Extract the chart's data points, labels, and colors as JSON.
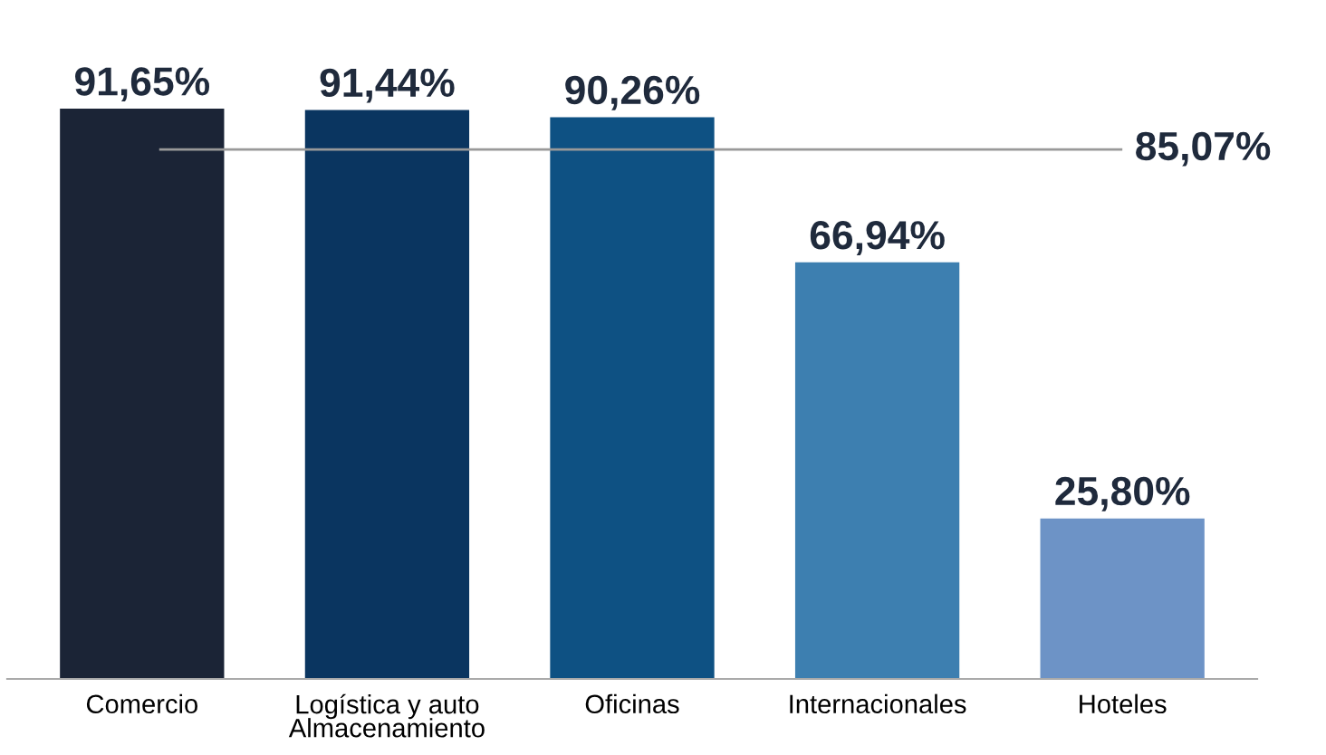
{
  "chart_data": {
    "type": "bar",
    "categories": [
      "Comercio",
      "Logística y auto\nAlmacenamiento",
      "Oficinas",
      "Internacionales",
      "Hoteles"
    ],
    "values": [
      91.65,
      91.44,
      90.26,
      66.94,
      25.8
    ],
    "colors": [
      "#1b2436",
      "#0a3560",
      "#0e5183",
      "#3d7fb0",
      "#6d93c6"
    ],
    "value_labels": [
      "91,65%",
      "91,44%",
      "90,26%",
      "66,94%",
      "25,80%"
    ],
    "ref_lines": [
      {
        "axis": "y",
        "value": 85.07,
        "label": "85,07%",
        "color": "#999999"
      }
    ],
    "grid": false,
    "legend": false
  }
}
